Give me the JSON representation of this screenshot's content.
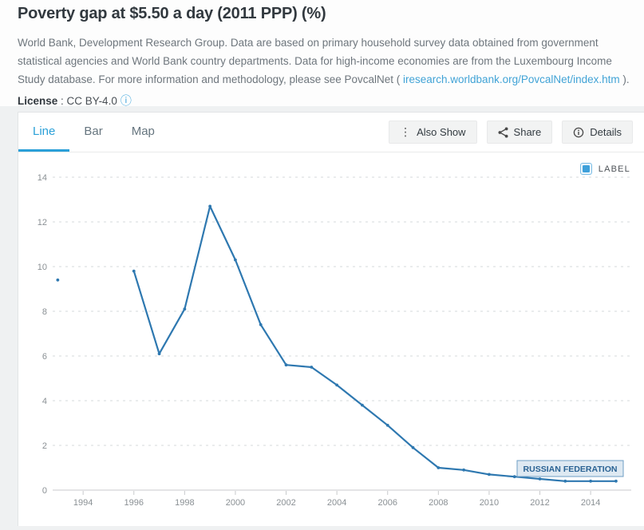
{
  "header": {
    "title": "Poverty gap at $5.50 a day (2011 PPP) (%)",
    "description": "World Bank, Development Research Group. Data are based on primary household survey data obtained from government statistical agencies and World Bank country departments. Data for high-income economies are from the Luxembourg Income Study database. For more information and methodology, please see PovcalNet ( ",
    "link": "iresearch.worldbank.org/PovcalNet/index.htm",
    "description_suffix": " ).",
    "license_label": "License",
    "license_separator": " : ",
    "license_value": "CC BY-4.0",
    "info_icon_glyph": "ⓘ"
  },
  "tabs": [
    {
      "label": "Line",
      "active": true
    },
    {
      "label": "Bar",
      "active": false
    },
    {
      "label": "Map",
      "active": false
    }
  ],
  "toolbar": {
    "also_show_label": "Also Show",
    "share_label": "Share",
    "details_label": "Details"
  },
  "legend": {
    "label": "LABEL",
    "checked": true
  },
  "chart_data": {
    "type": "line",
    "title": "Poverty gap at $5.50 a day (2011 PPP) (%)",
    "xlabel": "",
    "ylabel": "",
    "xlim": [
      1992.8,
      2015.6
    ],
    "ylim": [
      0,
      14
    ],
    "xticks": [
      1994,
      1996,
      1998,
      2000,
      2002,
      2004,
      2006,
      2008,
      2010,
      2012,
      2014
    ],
    "yticks": [
      0,
      2,
      4,
      6,
      8,
      10,
      12,
      14
    ],
    "grid": "horizontal-dashed",
    "legend_position": "top-right",
    "series": [
      {
        "name": "Russian Federation",
        "color": "#2e78b0",
        "points": [
          [
            1993,
            9.4
          ],
          [
            1996,
            9.8
          ],
          [
            1997,
            6.1
          ],
          [
            1998,
            8.1
          ],
          [
            1999,
            12.7
          ],
          [
            2000,
            10.3
          ],
          [
            2001,
            7.4
          ],
          [
            2002,
            5.6
          ],
          [
            2003,
            5.5
          ],
          [
            2004,
            4.7
          ],
          [
            2005,
            3.8
          ],
          [
            2006,
            2.9
          ],
          [
            2007,
            1.9
          ],
          [
            2008,
            1.0
          ],
          [
            2009,
            0.9
          ],
          [
            2010,
            0.7
          ],
          [
            2011,
            0.6
          ],
          [
            2012,
            0.5
          ],
          [
            2013,
            0.4
          ],
          [
            2014,
            0.4
          ],
          [
            2015,
            0.4
          ]
        ]
      }
    ],
    "annotation": {
      "text": "RUSSIAN FEDERATION",
      "text_color": "#2a6293",
      "box_fill": "#dbe7f1",
      "box_stroke": "#6d9ec4"
    },
    "colors": {
      "grid": "#d6d9db",
      "axis": "#c8cacc",
      "tick_label": "#8a9094",
      "accent_tab": "#2aa0d8"
    }
  }
}
